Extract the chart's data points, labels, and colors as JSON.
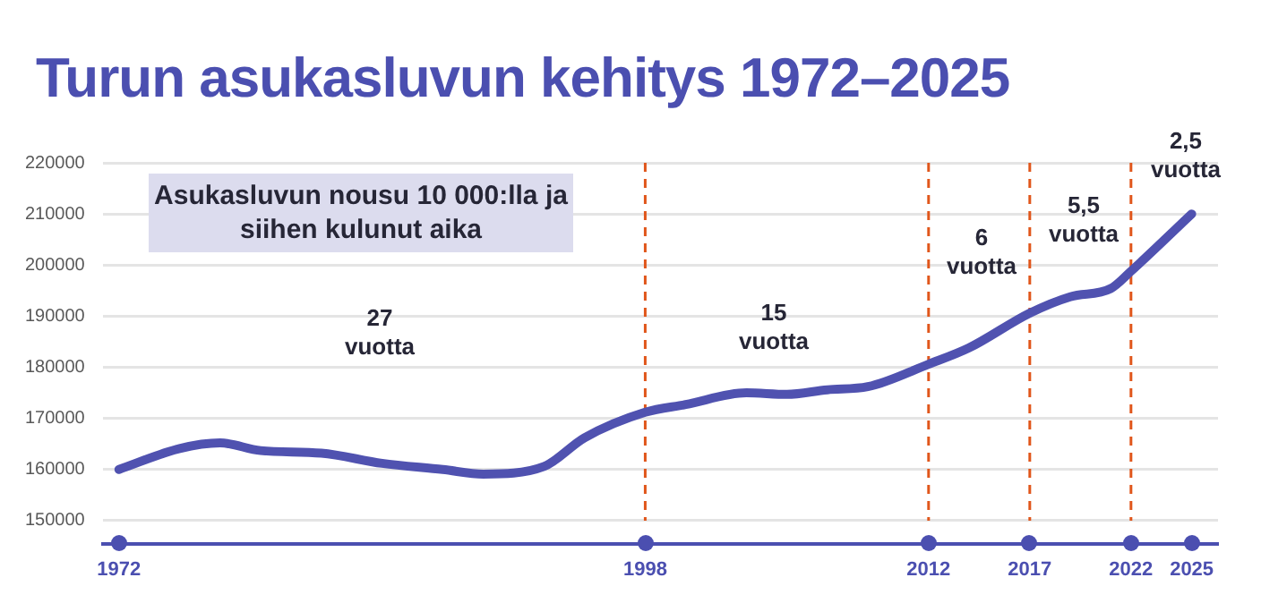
{
  "chart_data": {
    "type": "line",
    "title": "Turun asukasluvun kehitys 1972–2025",
    "x": [
      1972,
      1975,
      1977,
      1979,
      1982,
      1985,
      1988,
      1990,
      1993,
      1995,
      1998,
      2000,
      2003,
      2005,
      2007,
      2009,
      2012,
      2014,
      2017,
      2019,
      2021,
      2022,
      2025
    ],
    "series": [
      {
        "color": "#5052b0",
        "values": [
          160000,
          164100,
          165200,
          163700,
          163200,
          161200,
          160000,
          159100,
          160600,
          166200,
          171200,
          172700,
          175000,
          174700,
          175600,
          176200,
          180600,
          183800,
          190600,
          193800,
          195400,
          198800,
          210000
        ]
      }
    ],
    "xlim": [
      1971.2,
      2026.3
    ],
    "xticks": [
      1972,
      1998,
      2012,
      2017,
      2022,
      2025
    ],
    "ylim": [
      145500,
      220000
    ],
    "yticks": [
      150000,
      160000,
      170000,
      180000,
      190000,
      200000,
      210000,
      220000
    ],
    "grid": "y",
    "legend": false,
    "marker": "none",
    "line_style": "solid",
    "ref_lines": [
      {
        "axis": "x",
        "value": 1998,
        "color": "#e0561b",
        "line_style": "dashed"
      },
      {
        "axis": "x",
        "value": 2012,
        "color": "#e0561b",
        "line_style": "dashed"
      },
      {
        "axis": "x",
        "value": 2017,
        "color": "#e0561b",
        "line_style": "dashed"
      },
      {
        "axis": "x",
        "value": 2022,
        "color": "#e0561b",
        "line_style": "dashed"
      }
    ],
    "annotations": [
      "Asukasluvun nousu 10 000:lla ja siihen kulunut aika",
      "27 vuotta",
      "15 vuotta",
      "6 vuotta",
      "5,5 vuotta",
      "2,5 vuotta"
    ]
  }
}
